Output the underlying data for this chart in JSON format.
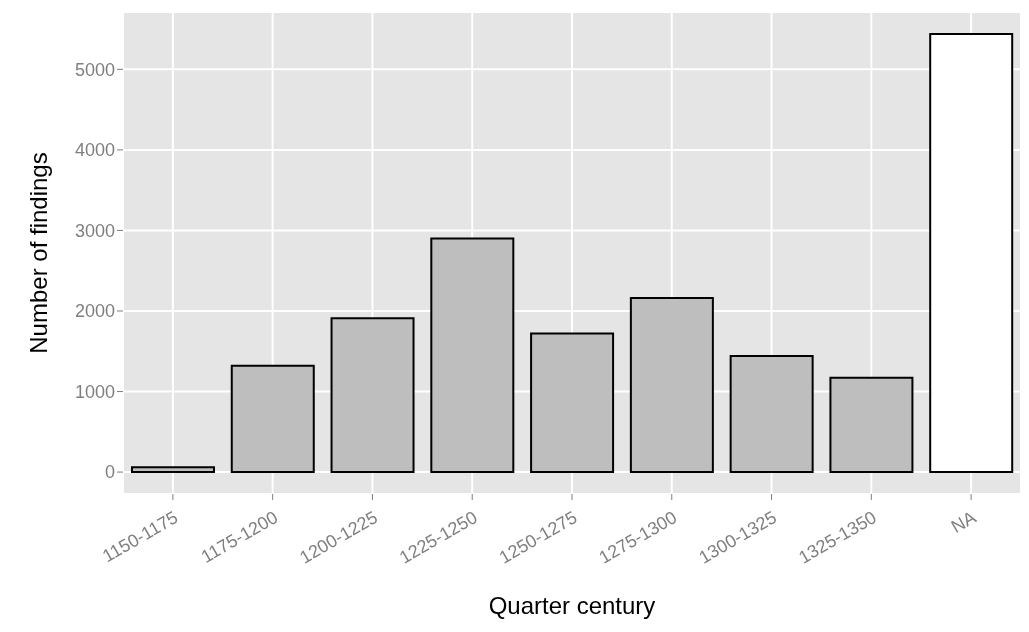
{
  "chart_data": {
    "type": "bar",
    "xlabel": "Quarter century",
    "ylabel": "Number of findings",
    "categories": [
      "1150-1175",
      "1175-1200",
      "1200-1225",
      "1225-1250",
      "1250-1275",
      "1275-1300",
      "1300-1325",
      "1325-1350",
      "NA"
    ],
    "values": [
      60,
      1320,
      1910,
      2900,
      1720,
      2160,
      1440,
      1170,
      5440
    ],
    "colors": [
      "#bebebe",
      "#bebebe",
      "#bebebe",
      "#bebebe",
      "#bebebe",
      "#bebebe",
      "#bebebe",
      "#bebebe",
      "#ffffff"
    ],
    "ylim": [
      -272,
      5712
    ],
    "yticks": [
      0,
      1000,
      2000,
      3000,
      4000,
      5000
    ],
    "grid": true
  }
}
